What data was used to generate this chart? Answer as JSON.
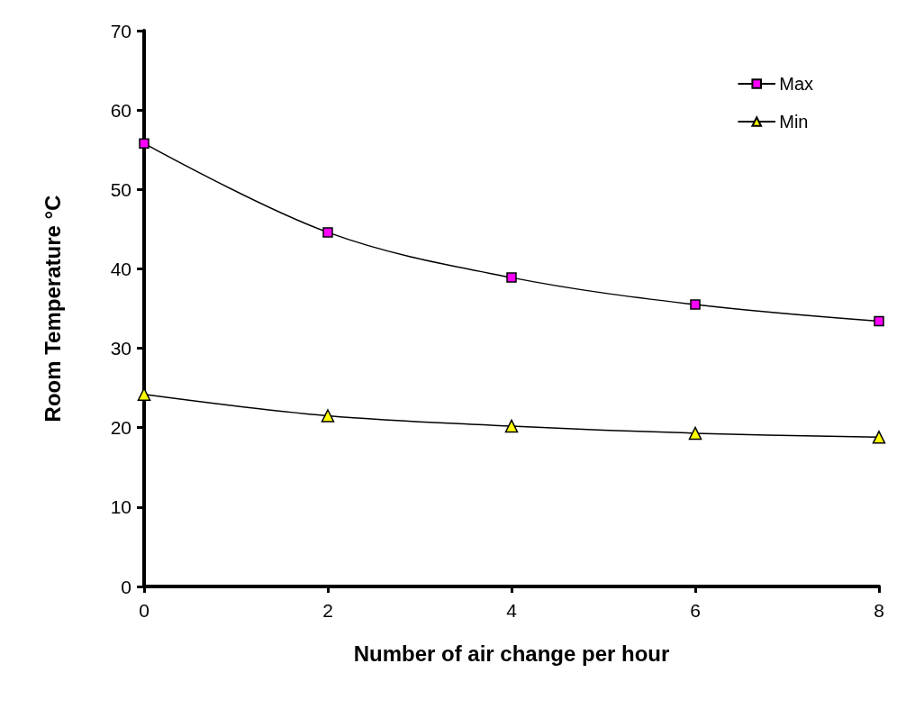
{
  "chart_data": {
    "type": "line",
    "xlabel": "Number of air change per hour",
    "ylabel": "Room Temperature °C",
    "x": [
      0,
      2,
      4,
      6,
      8
    ],
    "series": [
      {
        "name": "Max",
        "color": "#ff00ff",
        "marker": "square",
        "values": [
          55.8,
          44.6,
          38.9,
          35.5,
          33.4
        ]
      },
      {
        "name": "Min",
        "color": "#ffff00",
        "marker": "triangle",
        "values": [
          24.2,
          21.5,
          20.2,
          19.3,
          18.8
        ]
      }
    ],
    "xlim": [
      0,
      8
    ],
    "xticks": [
      0,
      2,
      4,
      6,
      8
    ],
    "ylim": [
      0,
      70
    ],
    "yticks": [
      0,
      10,
      20,
      30,
      40,
      50,
      60,
      70
    ],
    "grid": false,
    "legend": "top right",
    "line_style": "solid"
  }
}
